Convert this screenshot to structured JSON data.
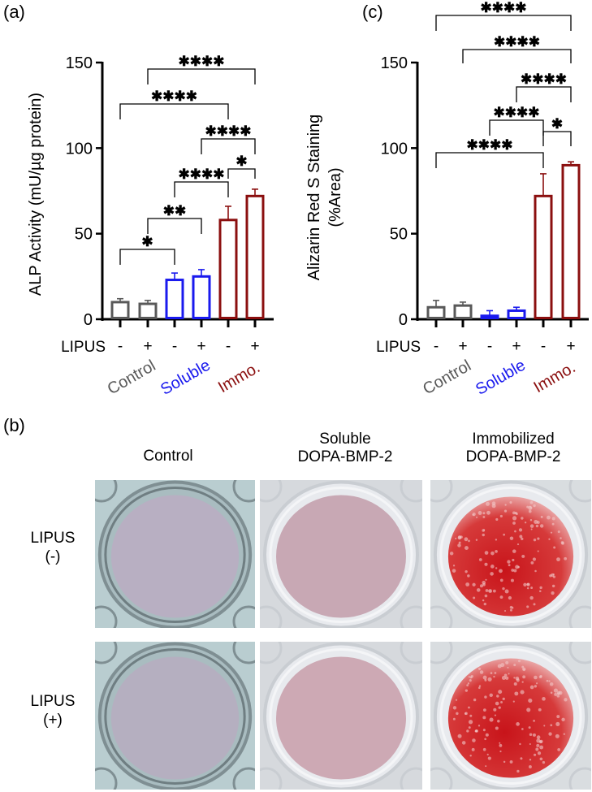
{
  "panels": {
    "a": {
      "label": "(a)"
    },
    "b": {
      "label": "(b)"
    },
    "c": {
      "label": "(c)"
    }
  },
  "colors": {
    "control": "#595959",
    "soluble": "#1a1aee",
    "immobilized": "#8b0f0f",
    "axis": "#000000"
  },
  "groups": [
    {
      "name": "Control",
      "color": "#595959"
    },
    {
      "name": "Soluble",
      "color": "#1a1aee"
    },
    {
      "name": "Immo.",
      "color": "#8b0f0f"
    }
  ],
  "lipus_label": "LIPUS",
  "lipus_signs": [
    "-",
    "+",
    "-",
    "+",
    "-",
    "+"
  ],
  "chart_data": [
    {
      "panel": "(a)",
      "type": "bar",
      "ylabel": "ALP Activity (mU/µg protein)",
      "ylim": [
        0,
        150
      ],
      "yticks": [
        0,
        50,
        100,
        150
      ],
      "categories": [
        "Control LIPUS-",
        "Control LIPUS+",
        "Soluble LIPUS-",
        "Soluble LIPUS+",
        "Immo. LIPUS-",
        "Immo. LIPUS+"
      ],
      "values": [
        10,
        9,
        23,
        25,
        58,
        72
      ],
      "errors": [
        2,
        2,
        4,
        4,
        8,
        4
      ],
      "significance": [
        {
          "from": 0,
          "to": 2,
          "label": "*"
        },
        {
          "from": 1,
          "to": 3,
          "label": "**"
        },
        {
          "from": 2,
          "to": 4,
          "label": "****"
        },
        {
          "from": 4,
          "to": 5,
          "label": "*"
        },
        {
          "from": 3,
          "to": 5,
          "label": "****"
        },
        {
          "from": 0,
          "to": 4,
          "label": "****"
        },
        {
          "from": 1,
          "to": 5,
          "label": "****"
        }
      ]
    },
    {
      "panel": "(c)",
      "type": "bar",
      "ylabel": "Alizarin Red S Staining (%Area)",
      "ylabel_lines": [
        "Alizarin Red S Staining",
        "(%Area)"
      ],
      "ylim": [
        0,
        150
      ],
      "yticks": [
        0,
        50,
        100,
        150
      ],
      "categories": [
        "Control LIPUS-",
        "Control LIPUS+",
        "Soluble LIPUS-",
        "Soluble LIPUS+",
        "Immo. LIPUS-",
        "Immo. LIPUS+"
      ],
      "values": [
        7,
        8,
        2,
        5,
        72,
        90
      ],
      "errors": [
        4,
        2,
        3,
        2,
        13,
        2
      ],
      "significance": [
        {
          "from": 0,
          "to": 4,
          "label": "****"
        },
        {
          "from": 4,
          "to": 5,
          "label": "*"
        },
        {
          "from": 2,
          "to": 4,
          "label": "****"
        },
        {
          "from": 3,
          "to": 5,
          "label": "****"
        },
        {
          "from": 1,
          "to": 5,
          "label": "****"
        },
        {
          "from": 0,
          "to": 5,
          "label": "****"
        }
      ]
    }
  ],
  "photo_grid": {
    "columns": [
      "Control",
      "Soluble\nDOPA-BMP-2",
      "Immobilized\nDOPA-BMP-2"
    ],
    "column_lines": [
      [
        "Control"
      ],
      [
        "Soluble",
        "DOPA-BMP-2"
      ],
      [
        "Immobilized",
        "DOPA-BMP-2"
      ]
    ],
    "rows": [
      [
        "LIPUS",
        "(-)"
      ],
      [
        "LIPUS",
        "(+)"
      ]
    ],
    "wells": [
      [
        {
          "stain": "none",
          "tint": "#b8afc2"
        },
        {
          "stain": "faint",
          "tint": "#c8a8b4"
        },
        {
          "stain": "heavy",
          "tint": "#d01c1c"
        }
      ],
      [
        {
          "stain": "none",
          "tint": "#b5afc0"
        },
        {
          "stain": "faint",
          "tint": "#cda9b4"
        },
        {
          "stain": "heavy",
          "tint": "#d42a2a"
        }
      ]
    ]
  }
}
